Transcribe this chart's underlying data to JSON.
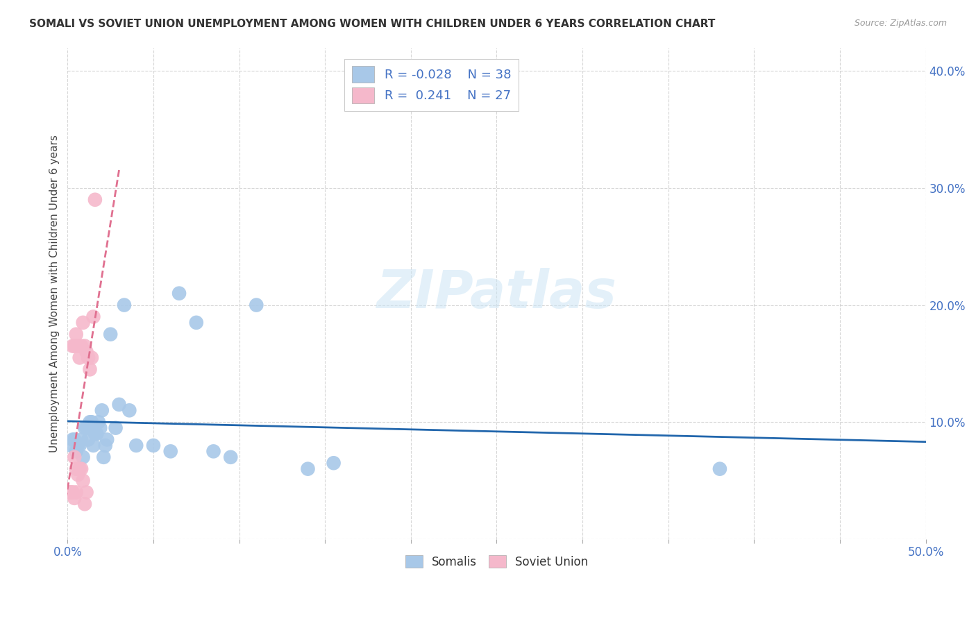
{
  "title": "SOMALI VS SOVIET UNION UNEMPLOYMENT AMONG WOMEN WITH CHILDREN UNDER 6 YEARS CORRELATION CHART",
  "source": "Source: ZipAtlas.com",
  "ylabel": "Unemployment Among Women with Children Under 6 years",
  "xlim": [
    0.0,
    0.5
  ],
  "ylim": [
    0.0,
    0.42
  ],
  "xticks": [
    0.0,
    0.05,
    0.1,
    0.15,
    0.2,
    0.25,
    0.3,
    0.35,
    0.4,
    0.45,
    0.5
  ],
  "yticks": [
    0.0,
    0.1,
    0.2,
    0.3,
    0.4
  ],
  "xticklabels": [
    "0.0%",
    "",
    "",
    "",
    "",
    "",
    "",
    "",
    "",
    "",
    "50.0%"
  ],
  "yticklabels": [
    "",
    "10.0%",
    "20.0%",
    "30.0%",
    "40.0%"
  ],
  "somali_color": "#a8c8e8",
  "soviet_color": "#f5b8cb",
  "somali_line_color": "#2166ac",
  "soviet_line_color": "#e07090",
  "background_color": "#ffffff",
  "grid_color": "#cccccc",
  "watermark_zip": "ZIP",
  "watermark_atlas": "atlas",
  "tick_color": "#4472c4",
  "somali_x": [
    0.002,
    0.003,
    0.004,
    0.005,
    0.006,
    0.007,
    0.008,
    0.009,
    0.01,
    0.011,
    0.012,
    0.013,
    0.014,
    0.015,
    0.016,
    0.017,
    0.018,
    0.019,
    0.02,
    0.021,
    0.022,
    0.023,
    0.025,
    0.028,
    0.03,
    0.033,
    0.036,
    0.04,
    0.05,
    0.06,
    0.065,
    0.075,
    0.085,
    0.095,
    0.11,
    0.14,
    0.155,
    0.38
  ],
  "somali_y": [
    0.08,
    0.085,
    0.085,
    0.075,
    0.08,
    0.08,
    0.085,
    0.07,
    0.095,
    0.095,
    0.085,
    0.1,
    0.1,
    0.08,
    0.09,
    0.09,
    0.1,
    0.095,
    0.11,
    0.07,
    0.08,
    0.085,
    0.175,
    0.095,
    0.115,
    0.2,
    0.11,
    0.08,
    0.08,
    0.075,
    0.21,
    0.185,
    0.075,
    0.07,
    0.2,
    0.06,
    0.065,
    0.06
  ],
  "soviet_x": [
    0.001,
    0.002,
    0.003,
    0.003,
    0.004,
    0.004,
    0.004,
    0.005,
    0.005,
    0.005,
    0.006,
    0.006,
    0.007,
    0.007,
    0.008,
    0.008,
    0.009,
    0.009,
    0.01,
    0.01,
    0.011,
    0.011,
    0.012,
    0.013,
    0.014,
    0.015,
    0.016
  ],
  "soviet_y": [
    0.04,
    0.04,
    0.04,
    0.165,
    0.035,
    0.07,
    0.165,
    0.04,
    0.06,
    0.175,
    0.055,
    0.165,
    0.06,
    0.155,
    0.06,
    0.165,
    0.05,
    0.185,
    0.03,
    0.165,
    0.04,
    0.16,
    0.155,
    0.145,
    0.155,
    0.19,
    0.29
  ],
  "legend_bottom": [
    "Somalis",
    "Soviet Union"
  ],
  "legend_top_r1": "R = -0.028",
  "legend_top_n1": "N = 38",
  "legend_top_r2": "R =  0.241",
  "legend_top_n2": "N = 27"
}
